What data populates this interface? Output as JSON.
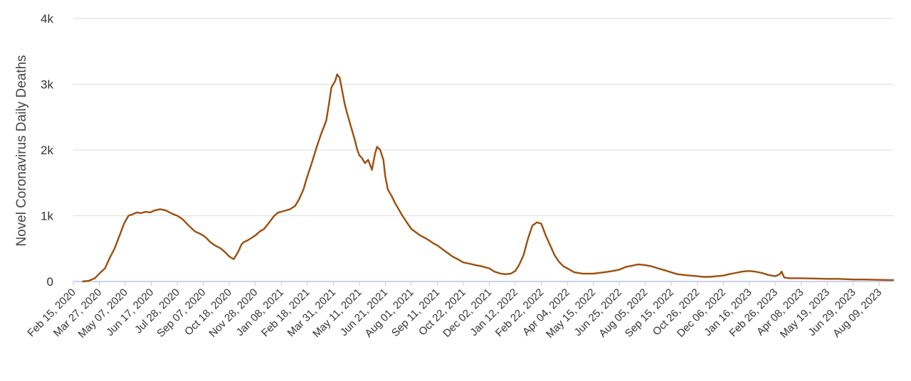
{
  "chart_data": {
    "type": "line",
    "title": "",
    "xlabel": "",
    "ylabel": "Novel Coronavirus Daily Deaths",
    "ylim": [
      0,
      4000
    ],
    "y_ticks": [
      0,
      1000,
      2000,
      3000,
      4000
    ],
    "y_tick_labels": [
      "0",
      "1k",
      "2k",
      "3k",
      "4k"
    ],
    "x_range": [
      "2020-02-15",
      "2023-08-31"
    ],
    "x_tick_dates": [
      "2020-02-15",
      "2020-03-27",
      "2020-05-07",
      "2020-06-17",
      "2020-07-28",
      "2020-09-07",
      "2020-10-18",
      "2020-11-28",
      "2021-01-08",
      "2021-02-18",
      "2021-03-31",
      "2021-05-11",
      "2021-06-21",
      "2021-08-01",
      "2021-09-11",
      "2021-10-22",
      "2021-12-02",
      "2022-01-12",
      "2022-02-22",
      "2022-04-04",
      "2022-05-15",
      "2022-06-25",
      "2022-08-05",
      "2022-09-15",
      "2022-10-26",
      "2022-12-06",
      "2023-01-16",
      "2023-02-26",
      "2023-04-08",
      "2023-05-19",
      "2023-06-29",
      "2023-08-09"
    ],
    "x_tick_labels": [
      "Feb 15, 2020",
      "Mar 27, 2020",
      "May 07, 2020",
      "Jun 17, 2020",
      "Jul 28, 2020",
      "Sep 07, 2020",
      "Oct 18, 2020",
      "Nov 28, 2020",
      "Jan 08, 2021",
      "Feb 18, 2021",
      "Mar 31, 2021",
      "May 11, 2021",
      "Jun 21, 2021",
      "Aug 01, 2021",
      "Sep 11, 2021",
      "Oct 22, 2021",
      "Dec 02, 2021",
      "Jan 12, 2022",
      "Feb 22, 2022",
      "Apr 04, 2022",
      "May 15, 2022",
      "Jun 25, 2022",
      "Aug 05, 2022",
      "Sep 15, 2022",
      "Oct 26, 2022",
      "Dec 06, 2022",
      "Jan 16, 2023",
      "Feb 26, 2023",
      "Apr 08, 2023",
      "May 19, 2023",
      "Jun 29, 2023",
      "Aug 09, 2023"
    ],
    "grid": true,
    "legend": "none",
    "colors": {
      "line": "#9c4f0c",
      "grid": "#dddddd",
      "baseline": "#aab8e6"
    },
    "series": [
      {
        "x": [
          "2020-03-01",
          "2020-03-10",
          "2020-03-20",
          "2020-03-27",
          "2020-04-05",
          "2020-04-12",
          "2020-04-20",
          "2020-04-28",
          "2020-05-05",
          "2020-05-12",
          "2020-05-18",
          "2020-05-25",
          "2020-06-01",
          "2020-06-08",
          "2020-06-15",
          "2020-06-22",
          "2020-07-01",
          "2020-07-10",
          "2020-07-20",
          "2020-07-28",
          "2020-08-05",
          "2020-08-15",
          "2020-08-25",
          "2020-09-01",
          "2020-09-07",
          "2020-09-12",
          "2020-09-18",
          "2020-09-25",
          "2020-10-05",
          "2020-10-12",
          "2020-10-18",
          "2020-10-25",
          "2020-11-01",
          "2020-11-06",
          "2020-11-10",
          "2020-11-15",
          "2020-11-20",
          "2020-11-28",
          "2020-12-05",
          "2020-12-12",
          "2020-12-20",
          "2020-12-28",
          "2021-01-03",
          "2021-01-08",
          "2021-01-15",
          "2021-01-22",
          "2021-01-30",
          "2021-02-05",
          "2021-02-12",
          "2021-02-18",
          "2021-02-25",
          "2021-03-05",
          "2021-03-12",
          "2021-03-20",
          "2021-03-25",
          "2021-03-28",
          "2021-03-31",
          "2021-04-03",
          "2021-04-06",
          "2021-04-10",
          "2021-04-14",
          "2021-04-18",
          "2021-04-22",
          "2021-04-28",
          "2021-05-04",
          "2021-05-08",
          "2021-05-11",
          "2021-05-15",
          "2021-05-20",
          "2021-05-25",
          "2021-05-31",
          "2021-06-05",
          "2021-06-08",
          "2021-06-13",
          "2021-06-18",
          "2021-06-21",
          "2021-06-25",
          "2021-07-01",
          "2021-07-06",
          "2021-07-12",
          "2021-07-18",
          "2021-07-25",
          "2021-08-01",
          "2021-08-08",
          "2021-08-15",
          "2021-08-25",
          "2021-09-05",
          "2021-09-11",
          "2021-09-18",
          "2021-09-25",
          "2021-10-05",
          "2021-10-15",
          "2021-10-22",
          "2021-11-01",
          "2021-11-10",
          "2021-11-20",
          "2021-12-02",
          "2021-12-10",
          "2021-12-20",
          "2021-12-28",
          "2022-01-05",
          "2022-01-12",
          "2022-01-18",
          "2022-01-25",
          "2022-02-01",
          "2022-02-08",
          "2022-02-15",
          "2022-02-22",
          "2022-03-01",
          "2022-03-08",
          "2022-03-15",
          "2022-03-22",
          "2022-03-29",
          "2022-04-04",
          "2022-04-15",
          "2022-04-28",
          "2022-05-15",
          "2022-06-01",
          "2022-06-15",
          "2022-06-25",
          "2022-07-05",
          "2022-07-15",
          "2022-07-25",
          "2022-08-05",
          "2022-08-15",
          "2022-08-25",
          "2022-09-05",
          "2022-09-15",
          "2022-09-25",
          "2022-10-05",
          "2022-10-15",
          "2022-10-26",
          "2022-11-05",
          "2022-11-15",
          "2022-11-25",
          "2022-12-06",
          "2022-12-15",
          "2022-12-25",
          "2023-01-05",
          "2023-01-16",
          "2023-01-25",
          "2023-02-05",
          "2023-02-15",
          "2023-02-26",
          "2023-03-05",
          "2023-03-08",
          "2023-03-12",
          "2023-03-20",
          "2023-04-08",
          "2023-04-25",
          "2023-05-19",
          "2023-06-05",
          "2023-06-29",
          "2023-07-15",
          "2023-08-09",
          "2023-08-31"
        ],
        "y": [
          0,
          10,
          50,
          120,
          200,
          350,
          500,
          700,
          880,
          1000,
          1020,
          1050,
          1040,
          1060,
          1050,
          1080,
          1100,
          1080,
          1030,
          1000,
          950,
          850,
          760,
          730,
          700,
          660,
          600,
          550,
          500,
          440,
          380,
          340,
          450,
          560,
          600,
          620,
          650,
          700,
          760,
          800,
          900,
          1000,
          1050,
          1060,
          1080,
          1100,
          1150,
          1250,
          1400,
          1600,
          1800,
          2050,
          2250,
          2450,
          2750,
          2950,
          3000,
          3050,
          3150,
          3100,
          2900,
          2700,
          2550,
          2350,
          2150,
          2000,
          1920,
          1880,
          1800,
          1850,
          1700,
          1950,
          2050,
          2000,
          1850,
          1600,
          1400,
          1300,
          1200,
          1100,
          1000,
          900,
          800,
          750,
          700,
          650,
          580,
          550,
          500,
          450,
          380,
          330,
          290,
          270,
          250,
          230,
          200,
          150,
          120,
          110,
          120,
          160,
          250,
          400,
          650,
          850,
          900,
          880,
          700,
          550,
          400,
          300,
          230,
          200,
          140,
          120,
          120,
          140,
          160,
          180,
          220,
          240,
          260,
          250,
          230,
          200,
          170,
          140,
          110,
          100,
          90,
          80,
          70,
          70,
          80,
          90,
          110,
          130,
          150,
          160,
          150,
          130,
          100,
          80,
          110,
          150,
          60,
          50,
          50,
          45,
          40,
          40,
          30,
          30,
          25,
          20
        ]
      }
    ]
  }
}
